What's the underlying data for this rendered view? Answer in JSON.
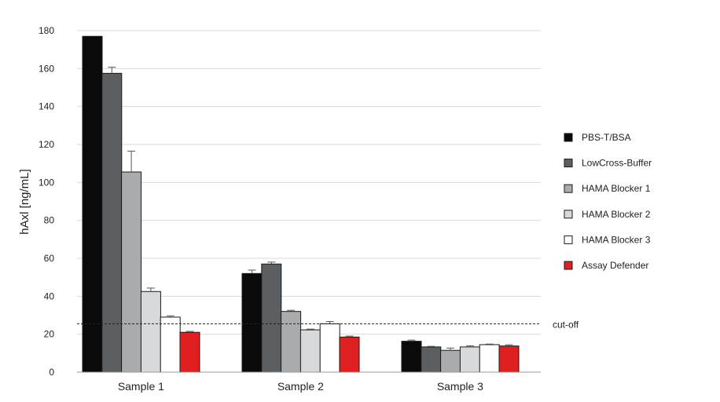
{
  "chart_data": {
    "type": "bar",
    "ylabel": "hAxl [ng/mL]",
    "xlabel": "",
    "ylim": [
      0,
      180
    ],
    "yticks": [
      0,
      20,
      40,
      60,
      80,
      100,
      120,
      140,
      160,
      180
    ],
    "grid": true,
    "legend_position": "right",
    "categories": [
      "Sample 1",
      "Sample 2",
      "Sample 3"
    ],
    "series": [
      {
        "name": "PBS-T/BSA",
        "color": "#0a0a0a",
        "values": [
          177,
          52,
          16.3
        ],
        "errors": [
          0,
          1.8,
          0.6
        ]
      },
      {
        "name": "LowCross-Buffer",
        "color": "#5b5f61",
        "values": [
          157.5,
          57,
          13.3
        ],
        "errors": [
          3.2,
          1.0,
          0.3
        ]
      },
      {
        "name": "HAMA Blocker 1",
        "color": "#a9abac",
        "values": [
          105.5,
          32,
          11.5
        ],
        "errors": [
          11,
          0.6,
          1.2
        ]
      },
      {
        "name": "HAMA Blocker 2",
        "color": "#d7d9da",
        "values": [
          42.5,
          22.3,
          13.3
        ],
        "errors": [
          1.8,
          0.4,
          0.6
        ]
      },
      {
        "name": "HAMA Blocker 3",
        "color": "#ffffff",
        "values": [
          29,
          25.5,
          14.5
        ],
        "errors": [
          0.7,
          1.2,
          0.3
        ]
      },
      {
        "name": "Assay Defender",
        "color": "#e02020",
        "values": [
          21,
          18.5,
          13.8
        ],
        "errors": [
          0.5,
          0.5,
          0.6
        ]
      }
    ],
    "cutoff": {
      "label": "cut-off",
      "value": 25.5
    }
  }
}
